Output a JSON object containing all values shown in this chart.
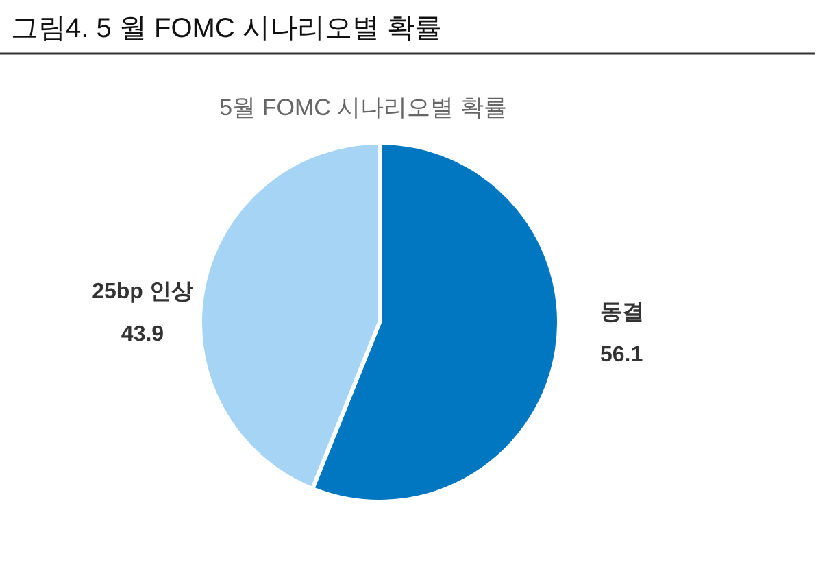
{
  "chart_data": {
    "type": "pie",
    "title": "그림4.  5 월 FOMC 시나리오별 확률",
    "subtitle": "5월 FOMC 시나리오별 확률",
    "categories": [
      "동결",
      "25bp 인상"
    ],
    "values": [
      56.1,
      43.9
    ],
    "colors": [
      "#0077c0",
      "#a6d4f5"
    ],
    "data_labels": true
  }
}
